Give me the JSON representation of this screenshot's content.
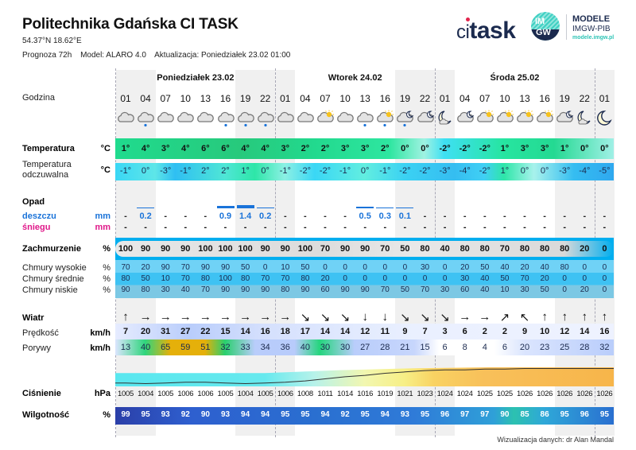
{
  "header": {
    "title": "Politechnika Gdańska CI TASK",
    "coords": "54.37°N  18.62°E",
    "forecast": "Prognoza 72h",
    "model": "Model:  ALARO 4.0",
    "update": "Aktualizacja:  Poniedziałek 23.02 01:00"
  },
  "logos": {
    "ci_task": "task",
    "ci_prefix": "ci",
    "imgw_top": "IM",
    "imgw_bottom": "GW",
    "modele": "MODELE",
    "imgw_pib": "IMGW-PIB",
    "url": "modele.imgw.pl"
  },
  "days": [
    {
      "label": "Poniedziałek 23.02"
    },
    {
      "label": "Wtorek 24.02"
    },
    {
      "label": "Środa 25.02"
    }
  ],
  "labels": {
    "hour": "Godzina",
    "temp": "Temperatura",
    "temp_unit": "°C",
    "feels": "Temperatura",
    "feels2": "odczuwalna",
    "feels_unit": "°C",
    "precip": "Opad",
    "rain": "deszczu",
    "rain_unit": "mm",
    "snow": "śniegu",
    "snow_unit": "mm",
    "clouds": "Zachmurzenie",
    "clouds_unit": "%",
    "high": "Chmury wysokie",
    "mid": "Chmury średnie",
    "low": "Chmury niskie",
    "pct": "%",
    "wind": "Wiatr",
    "speed": "Prędkość",
    "speed_unit": "km/h",
    "gust": "Porywy",
    "gust_unit": "km/h",
    "pressure": "Ciśnienie",
    "pressure_unit": "hPa",
    "humidity": "Wilgotność",
    "humidity_unit": "%"
  },
  "hours": [
    "01",
    "04",
    "07",
    "10",
    "13",
    "16",
    "19",
    "22",
    "01",
    "04",
    "07",
    "10",
    "13",
    "16",
    "19",
    "22",
    "01",
    "04",
    "07",
    "10",
    "13",
    "16",
    "19",
    "22",
    "01"
  ],
  "icons": [
    "cloud",
    "cloud-rain",
    "cloud",
    "cloud",
    "cloud",
    "cloud-rain",
    "cloud-rain",
    "cloud-rain",
    "cloud",
    "cloud",
    "cloud-sun",
    "cloud",
    "cloud-rain",
    "cloud-sun-rain",
    "cloud-moon-rain",
    "cloud-moon",
    "moon-cloud",
    "cloud-moon",
    "cloud-sun",
    "cloud-sun",
    "cloud-sun",
    "cloud-sun",
    "cloud-moon",
    "moon-cloud",
    "moon"
  ],
  "temperature": [
    "1°",
    "4°",
    "3°",
    "4°",
    "6°",
    "6°",
    "4°",
    "4°",
    "3°",
    "2°",
    "2°",
    "3°",
    "3°",
    "2°",
    "0°",
    "0°",
    "-2°",
    "-2°",
    "-2°",
    "1°",
    "3°",
    "3°",
    "1°",
    "0°",
    "0°"
  ],
  "feels_like": [
    "-1°",
    "0°",
    "-3°",
    "-1°",
    "2°",
    "2°",
    "1°",
    "0°",
    "-1°",
    "-2°",
    "-2°",
    "-1°",
    "0°",
    "-1°",
    "-2°",
    "-2°",
    "-3°",
    "-4°",
    "-2°",
    "1°",
    "0°",
    "0°",
    "-3°",
    "-4°",
    "-5°"
  ],
  "rain": [
    "-",
    "0.2",
    "-",
    "-",
    "-",
    "0.9",
    "1.4",
    "0.2",
    "-",
    "-",
    "-",
    "-",
    "0.5",
    "0.3",
    "0.1",
    "-",
    "-",
    "-",
    "-",
    "-",
    "-",
    "-",
    "-",
    "-",
    "-"
  ],
  "snow": [
    "-",
    "-",
    "-",
    "-",
    "-",
    "-",
    "-",
    "-",
    "-",
    "-",
    "-",
    "-",
    "-",
    "-",
    "-",
    "-",
    "-",
    "-",
    "-",
    "-",
    "-",
    "-",
    "-",
    "-",
    "-"
  ],
  "cloud_total": [
    "100",
    "90",
    "90",
    "90",
    "100",
    "100",
    "100",
    "90",
    "90",
    "100",
    "70",
    "90",
    "90",
    "70",
    "50",
    "80",
    "40",
    "80",
    "80",
    "70",
    "80",
    "80",
    "80",
    "20",
    "0"
  ],
  "cloud_high": [
    "70",
    "20",
    "90",
    "70",
    "90",
    "90",
    "50",
    "0",
    "10",
    "50",
    "0",
    "0",
    "0",
    "0",
    "0",
    "30",
    "0",
    "20",
    "50",
    "40",
    "20",
    "40",
    "80",
    "0",
    "0"
  ],
  "cloud_mid": [
    "80",
    "50",
    "10",
    "70",
    "80",
    "100",
    "80",
    "70",
    "70",
    "80",
    "20",
    "0",
    "0",
    "0",
    "0",
    "0",
    "0",
    "30",
    "40",
    "50",
    "70",
    "20",
    "0",
    "0",
    "0"
  ],
  "cloud_low": [
    "90",
    "80",
    "30",
    "40",
    "70",
    "90",
    "90",
    "90",
    "80",
    "90",
    "60",
    "90",
    "90",
    "70",
    "50",
    "70",
    "30",
    "60",
    "40",
    "10",
    "30",
    "50",
    "0",
    "20",
    "0"
  ],
  "wind_dir": [
    "↑",
    "→",
    "→",
    "→",
    "→",
    "→",
    "→",
    "→",
    "→",
    "↘",
    "↘",
    "↘",
    "↓",
    "↓",
    "↘",
    "↘",
    "↘",
    "→",
    "→",
    "↗",
    "↖",
    "↑",
    "↑",
    "↑",
    "↑"
  ],
  "wind_speed": [
    "7",
    "20",
    "31",
    "27",
    "22",
    "15",
    "14",
    "16",
    "18",
    "17",
    "14",
    "14",
    "12",
    "11",
    "9",
    "7",
    "3",
    "6",
    "2",
    "2",
    "9",
    "10",
    "12",
    "14",
    "16"
  ],
  "wind_gust": [
    "13",
    "40",
    "65",
    "59",
    "51",
    "32",
    "33",
    "34",
    "36",
    "40",
    "30",
    "30",
    "27",
    "28",
    "21",
    "15",
    "6",
    "8",
    "4",
    "6",
    "20",
    "23",
    "25",
    "28",
    "32"
  ],
  "pressure": [
    "1005",
    "1004",
    "1005",
    "1006",
    "1006",
    "1005",
    "1004",
    "1005",
    "1006",
    "1008",
    "1011",
    "1014",
    "1016",
    "1019",
    "1021",
    "1023",
    "1024",
    "1024",
    "1025",
    "1025",
    "1026",
    "1026",
    "1026",
    "1026",
    "1026"
  ],
  "humidity": [
    "99",
    "95",
    "93",
    "92",
    "90",
    "93",
    "94",
    "94",
    "95",
    "95",
    "94",
    "92",
    "95",
    "94",
    "93",
    "95",
    "96",
    "97",
    "97",
    "90",
    "85",
    "86",
    "95",
    "96",
    "95"
  ],
  "colors": {
    "rain": "#1a73d9",
    "snow": "#e0198a",
    "cloud_band": "#00aeef",
    "temp_green": "#21d98f",
    "feels_cyan": "#3dd7f2",
    "gust_yellow": "#e5b00a",
    "humidity_blue": "#2a6fd0",
    "pressure_orange": "#f8b646"
  },
  "footer": "Wizualizacja danych: dr Alan Mandal"
}
